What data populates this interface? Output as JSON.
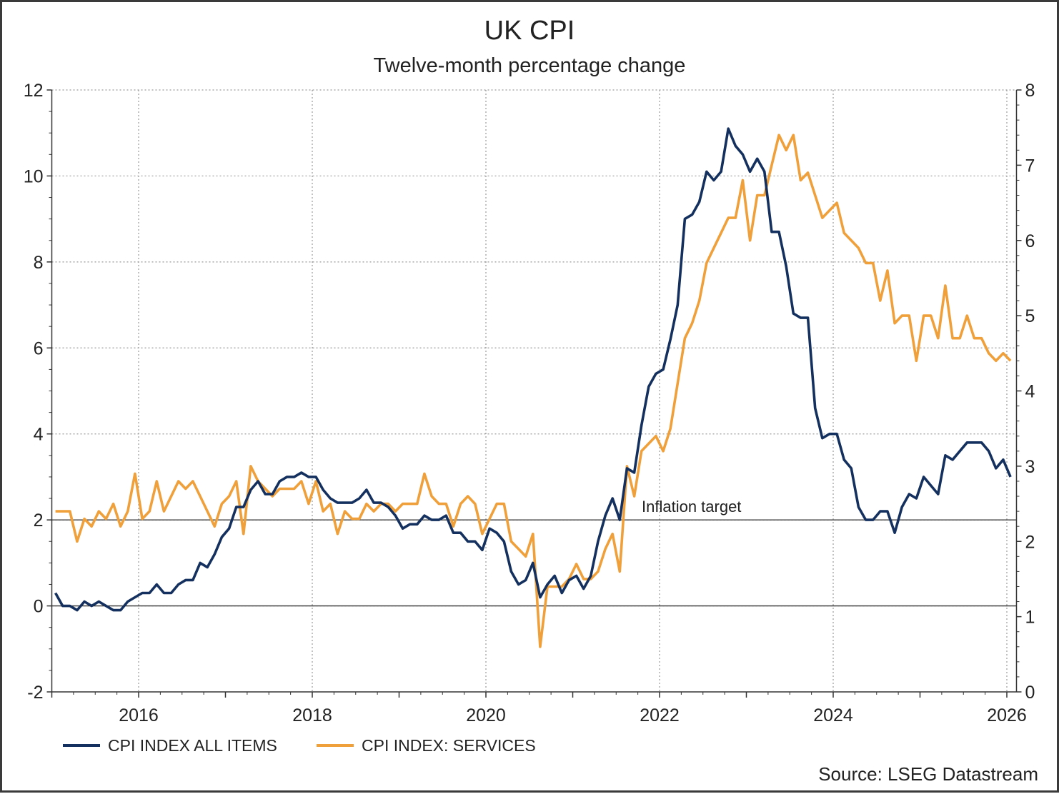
{
  "chart_data": {
    "type": "line",
    "title": "UK CPI",
    "subtitle": "Twelve-month percentage change",
    "source": "Source: LSEG Datastream",
    "annotation": "Inflation target",
    "reference_lines_left": [
      0,
      2
    ],
    "x_ticks": [
      "2016",
      "2018",
      "2020",
      "2022",
      "2024",
      "2026"
    ],
    "x_range": [
      "2015-01",
      "2026-02"
    ],
    "y_left": {
      "range": [
        -2,
        12
      ],
      "ticks": [
        -2,
        0,
        2,
        4,
        6,
        8,
        10,
        12
      ]
    },
    "y_right": {
      "range": [
        0,
        8
      ],
      "ticks": [
        0,
        1,
        2,
        3,
        4,
        5,
        6,
        7,
        8
      ]
    },
    "grid": true,
    "legend_position": "bottom-left",
    "start": "2015-01",
    "series": [
      {
        "name": "CPI INDEX ALL ITEMS",
        "axis": "left",
        "color": "#14305e",
        "values": [
          0.3,
          0.0,
          0.0,
          -0.1,
          0.1,
          0.0,
          0.1,
          0.0,
          -0.1,
          -0.1,
          0.1,
          0.2,
          0.3,
          0.3,
          0.5,
          0.3,
          0.3,
          0.5,
          0.6,
          0.6,
          1.0,
          0.9,
          1.2,
          1.6,
          1.8,
          2.3,
          2.3,
          2.7,
          2.9,
          2.6,
          2.6,
          2.9,
          3.0,
          3.0,
          3.1,
          3.0,
          3.0,
          2.7,
          2.5,
          2.4,
          2.4,
          2.4,
          2.5,
          2.7,
          2.4,
          2.4,
          2.3,
          2.1,
          1.8,
          1.9,
          1.9,
          2.1,
          2.0,
          2.0,
          2.1,
          1.7,
          1.7,
          1.5,
          1.5,
          1.3,
          1.8,
          1.7,
          1.5,
          0.8,
          0.5,
          0.6,
          1.0,
          0.2,
          0.5,
          0.7,
          0.3,
          0.6,
          0.7,
          0.4,
          0.7,
          1.5,
          2.1,
          2.5,
          2.0,
          3.2,
          3.1,
          4.2,
          5.1,
          5.4,
          5.5,
          6.2,
          7.0,
          9.0,
          9.1,
          9.4,
          10.1,
          9.9,
          10.1,
          11.1,
          10.7,
          10.5,
          10.1,
          10.4,
          10.1,
          8.7,
          8.7,
          7.9,
          6.8,
          6.7,
          6.7,
          4.6,
          3.9,
          4.0,
          4.0,
          3.4,
          3.2,
          2.3,
          2.0,
          2.0,
          2.2,
          2.2,
          1.7,
          2.3,
          2.6,
          2.5,
          3.0,
          2.8,
          2.6,
          3.5,
          3.4,
          3.6,
          3.8,
          3.8,
          3.8,
          3.6,
          3.2,
          3.4,
          3.0
        ]
      },
      {
        "name": "CPI INDEX: SERVICES",
        "axis": "right",
        "color": "#f0a03a",
        "values": [
          2.4,
          2.4,
          2.4,
          2.0,
          2.3,
          2.2,
          2.4,
          2.3,
          2.5,
          2.2,
          2.4,
          2.9,
          2.3,
          2.4,
          2.8,
          2.4,
          2.6,
          2.8,
          2.7,
          2.8,
          2.6,
          2.4,
          2.2,
          2.5,
          2.6,
          2.8,
          2.1,
          3.0,
          2.8,
          2.7,
          2.6,
          2.7,
          2.7,
          2.7,
          2.8,
          2.5,
          2.8,
          2.4,
          2.5,
          2.1,
          2.4,
          2.3,
          2.3,
          2.5,
          2.4,
          2.5,
          2.5,
          2.4,
          2.5,
          2.5,
          2.5,
          2.9,
          2.6,
          2.5,
          2.5,
          2.2,
          2.5,
          2.6,
          2.5,
          2.1,
          2.3,
          2.5,
          2.5,
          2.0,
          1.9,
          1.8,
          2.1,
          0.6,
          1.4,
          1.4,
          1.4,
          1.5,
          1.7,
          1.5,
          1.5,
          1.6,
          1.9,
          2.1,
          1.6,
          3.0,
          2.6,
          3.2,
          3.3,
          3.4,
          3.2,
          3.5,
          4.1,
          4.7,
          4.9,
          5.2,
          5.7,
          5.9,
          6.1,
          6.3,
          6.3,
          6.8,
          6.0,
          6.6,
          6.6,
          7.0,
          7.4,
          7.2,
          7.4,
          6.8,
          6.9,
          6.6,
          6.3,
          6.4,
          6.5,
          6.1,
          6.0,
          5.9,
          5.7,
          5.7,
          5.2,
          5.6,
          4.9,
          5.0,
          5.0,
          4.4,
          5.0,
          5.0,
          4.7,
          5.4,
          4.7,
          4.7,
          5.0,
          4.7,
          4.7,
          4.5,
          4.4,
          4.5,
          4.4
        ]
      }
    ]
  }
}
